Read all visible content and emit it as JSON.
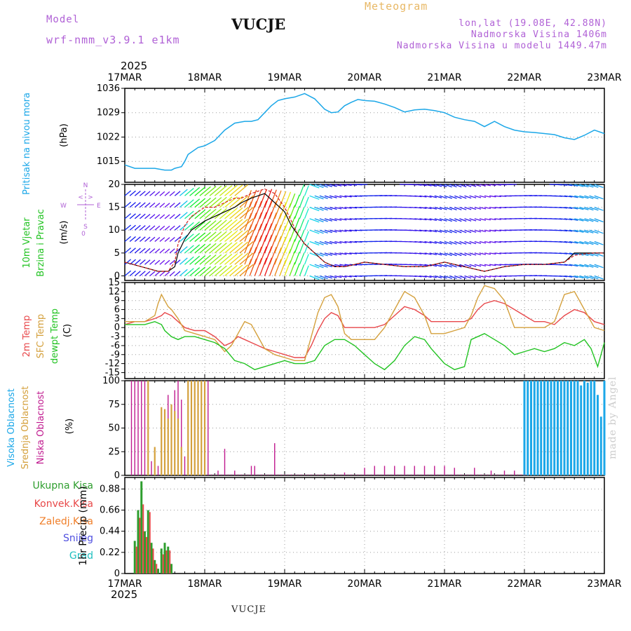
{
  "header": {
    "model_label": "Model",
    "model_name": "wrf-nmm_v3.9.1  e1km",
    "station": "VUCJE",
    "meteogram": "Meteogram",
    "lonlat": "lon,lat (19.08E, 42.88N)",
    "elevation": "Nadmorska Visina 1406m",
    "model_elevation": "Nadmorska Visina u modelu 1449.47m"
  },
  "footer": {
    "station": "VUCJE",
    "credit": "made by Angel"
  },
  "axis": {
    "year": "2025",
    "dates": [
      "17MAR",
      "18MAR",
      "19MAR",
      "20MAR",
      "21MAR",
      "22MAR",
      "23MAR"
    ]
  },
  "colors": {
    "pressure": "#1ba7e8",
    "temp2m": "#e8484b",
    "sfc": "#d4a03c",
    "dewpt": "#22c322",
    "high_cloud": "#1ba7e8",
    "mid_cloud": "#d4a03c",
    "low_cloud": "#c0198f",
    "total_precip": "#2e9e2e",
    "conv_precip": "#e84848",
    "frozen_precip": "#f07f2a",
    "snow": "#5050e0",
    "graupel": "#20c0c0",
    "text_purple": "#b061d6"
  },
  "chart_data": [
    {
      "type": "line",
      "panel": "pressure",
      "labels": [
        "Pritisak na nivou mora",
        "(hPa)"
      ],
      "ylim": [
        1009,
        1036
      ],
      "ticks": [
        "1015",
        "1022",
        "1029",
        "1036"
      ],
      "tick_values": [
        1015,
        1022,
        1029,
        1036
      ],
      "series": [
        {
          "x": [
            0,
            3,
            6,
            9,
            12,
            14,
            15,
            17,
            18,
            19,
            22,
            24,
            27,
            30,
            33,
            36,
            38,
            40,
            42,
            44,
            46,
            48,
            51,
            54,
            57,
            60,
            62,
            64,
            66,
            68,
            70,
            72,
            75,
            78,
            81,
            84,
            87,
            90,
            93,
            96,
            99,
            102,
            105,
            108,
            111,
            114,
            117,
            120,
            123,
            126,
            129,
            132,
            135,
            138,
            141,
            144
          ],
          "y": [
            1014,
            1013,
            1013,
            1013,
            1012.5,
            1012.5,
            1013,
            1013.5,
            1015,
            1017,
            1019,
            1019.5,
            1021,
            1024,
            1026,
            1026.5,
            1026.5,
            1027,
            1029,
            1031,
            1032.5,
            1033,
            1033.5,
            1034.5,
            1033,
            1030,
            1029,
            1029.2,
            1031,
            1032,
            1032.8,
            1032.5,
            1032.3,
            1031.5,
            1030.5,
            1029.2,
            1029.8,
            1030,
            1029.6,
            1029,
            1027.7,
            1027,
            1026.5,
            1025,
            1026.5,
            1025,
            1024,
            1023.5,
            1023.3,
            1023,
            1022.7,
            1021.8,
            1021.3,
            1022.5,
            1024,
            1023
          ]
        }
      ]
    },
    {
      "type": "line",
      "panel": "wind",
      "labels": [
        "10m Vjetar",
        "Brzina i Pravac",
        "(m/s)"
      ],
      "compass": [
        "N",
        "E",
        "S",
        "W",
        "0",
        "<",
        ">"
      ],
      "ylim": [
        -1,
        20
      ],
      "ticks": [
        "0",
        "5",
        "10",
        "15",
        "20"
      ],
      "tick_values": [
        0,
        5,
        10,
        15,
        20
      ],
      "series": [
        {
          "style": "solid-black",
          "x": [
            0,
            5,
            10,
            13,
            15,
            16,
            18,
            20,
            22,
            24,
            27,
            30,
            33,
            35,
            38,
            42,
            45,
            48,
            50,
            52,
            54,
            57,
            60,
            63,
            66,
            69,
            72,
            78,
            84,
            90,
            96,
            102,
            108,
            114,
            120,
            126,
            132,
            135,
            138,
            141,
            144
          ],
          "y": [
            3,
            2,
            1,
            1,
            2,
            5,
            8,
            10,
            11,
            12,
            13,
            14,
            15,
            16,
            17,
            18,
            16,
            14,
            11,
            9,
            7,
            5,
            3,
            2,
            2,
            2.5,
            3,
            2.5,
            2,
            2,
            3,
            2,
            1,
            2,
            2.5,
            2.5,
            3,
            5,
            5,
            5,
            5
          ]
        },
        {
          "style": "dashed-red",
          "x": [
            0,
            5,
            10,
            13,
            15,
            16,
            18,
            20,
            22,
            24,
            27,
            30,
            33,
            35,
            38,
            42,
            45,
            48,
            50,
            52,
            54,
            57,
            60,
            63,
            66,
            69,
            72,
            78,
            84,
            90,
            96,
            102,
            108,
            114,
            120,
            126,
            132,
            135,
            138,
            141,
            144
          ],
          "y": [
            3,
            2,
            1,
            1,
            3,
            7,
            11,
            13,
            14,
            15,
            15,
            16,
            17,
            17,
            18,
            19,
            18,
            15,
            12,
            9,
            7,
            5,
            3,
            2,
            2,
            2.5,
            3,
            2.5,
            2,
            2,
            3,
            2,
            1,
            2,
            2.5,
            2.5,
            3,
            4.5,
            4.8,
            5,
            5
          ]
        }
      ]
    },
    {
      "type": "line",
      "panel": "temperature",
      "labels": [
        "2m Temp",
        "SFC Temp",
        "dewpt Temp",
        "(C)"
      ],
      "ylim": [
        -17,
        15
      ],
      "ticks": [
        "15",
        "12",
        "9",
        "6",
        "3",
        "0",
        "-3",
        "-6",
        "-9",
        "-12",
        "-15"
      ],
      "tick_values": [
        15,
        12,
        9,
        6,
        3,
        0,
        -3,
        -6,
        -9,
        -12,
        -15
      ],
      "series": [
        {
          "name": "2m Temp",
          "x": [
            0,
            3,
            6,
            9,
            11,
            12,
            14,
            16,
            18,
            21,
            24,
            27,
            30,
            32,
            34,
            36,
            38,
            40,
            42,
            45,
            48,
            51,
            54,
            56,
            58,
            60,
            62,
            64,
            66,
            68,
            70,
            72,
            75,
            78,
            81,
            84,
            87,
            90,
            92,
            96,
            99,
            102,
            104,
            106,
            108,
            111,
            114,
            117,
            120,
            123,
            126,
            129,
            132,
            135,
            138,
            141,
            144
          ],
          "y": [
            1,
            2,
            2,
            3,
            4,
            5,
            4,
            2,
            0,
            -1,
            -1,
            -3,
            -6,
            -5,
            -3,
            -4,
            -5,
            -6,
            -7,
            -8,
            -9,
            -10,
            -10,
            -6,
            -1,
            3,
            5,
            4,
            0,
            0,
            0,
            0,
            0,
            1,
            4,
            7,
            6,
            4,
            2,
            2,
            2,
            2,
            3,
            6,
            8,
            9,
            8,
            6,
            4,
            2,
            2,
            1,
            4,
            6,
            5,
            2,
            1
          ]
        },
        {
          "name": "SFC Temp",
          "x": [
            0,
            3,
            6,
            9,
            10,
            11,
            12,
            13,
            14,
            16,
            18,
            21,
            24,
            27,
            30,
            32,
            34,
            36,
            38,
            40,
            42,
            45,
            48,
            51,
            54,
            56,
            58,
            60,
            62,
            64,
            66,
            68,
            70,
            72,
            75,
            78,
            81,
            84,
            87,
            90,
            92,
            96,
            99,
            102,
            104,
            106,
            108,
            111,
            114,
            117,
            120,
            123,
            126,
            129,
            132,
            135,
            138,
            141,
            144
          ],
          "y": [
            2,
            2,
            2,
            4,
            8,
            11,
            9,
            7,
            6,
            3,
            -1,
            -2,
            -3,
            -4,
            -8,
            -6,
            -2,
            2,
            1,
            -3,
            -7,
            -9,
            -10,
            -11,
            -11,
            -3,
            5,
            10,
            11,
            7,
            -2,
            -4,
            -4,
            -4,
            -4,
            0,
            6,
            12,
            10,
            4,
            -2,
            -2,
            -1,
            0,
            4,
            10,
            14,
            13,
            9,
            0,
            0,
            0,
            0,
            2,
            11,
            12,
            6,
            0,
            -1
          ]
        },
        {
          "name": "dewpt Temp",
          "x": [
            0,
            3,
            6,
            9,
            11,
            12,
            14,
            16,
            18,
            21,
            24,
            27,
            30,
            33,
            36,
            39,
            42,
            45,
            48,
            51,
            54,
            57,
            60,
            63,
            66,
            69,
            72,
            75,
            78,
            81,
            84,
            87,
            90,
            92,
            96,
            99,
            102,
            104,
            108,
            111,
            114,
            117,
            120,
            123,
            126,
            129,
            132,
            135,
            138,
            140,
            142,
            144
          ],
          "y": [
            1,
            1,
            1,
            2,
            1,
            -1,
            -3,
            -4,
            -3,
            -3,
            -4,
            -5,
            -7,
            -11,
            -12,
            -14,
            -13,
            -12,
            -11,
            -12,
            -12,
            -11,
            -6,
            -4,
            -4,
            -6,
            -9,
            -12,
            -14,
            -11,
            -6,
            -3,
            -4,
            -7,
            -12,
            -14,
            -13,
            -4,
            -2,
            -4,
            -6,
            -9,
            -8,
            -7,
            -8,
            -7,
            -5,
            -6,
            -4,
            -7,
            -13,
            -5
          ]
        }
      ]
    },
    {
      "type": "bar",
      "panel": "clouds",
      "labels": [
        "Visoka Oblacnost",
        "Srednja Oblacnost",
        "Niska Oblacnost",
        "(%)"
      ],
      "ylim": [
        0,
        100
      ],
      "ticks": [
        "0",
        "25",
        "50",
        "75",
        "100"
      ],
      "tick_values": [
        0,
        25,
        50,
        75,
        100
      ],
      "series": [
        {
          "name": "Niska Oblacnost",
          "x": [
            2,
            3,
            4,
            5,
            6,
            7,
            8,
            9,
            10,
            11,
            12,
            13,
            14,
            15,
            16,
            17,
            18,
            19,
            20,
            21,
            22,
            23,
            24,
            25,
            28,
            30,
            33,
            38,
            39,
            45,
            66,
            72,
            75,
            78,
            81,
            84,
            87,
            90,
            93,
            96,
            99,
            105,
            110,
            114,
            117
          ],
          "y": [
            100,
            100,
            100,
            100,
            100,
            100,
            15,
            20,
            10,
            35,
            8,
            85,
            5,
            90,
            100,
            80,
            20,
            100,
            100,
            100,
            100,
            100,
            100,
            100,
            5,
            28,
            5,
            10,
            10,
            34,
            3,
            8,
            10,
            10,
            10,
            10,
            10,
            10,
            10,
            10,
            8,
            8,
            5,
            5,
            5
          ]
        },
        {
          "name": "Srednja Oblacnost",
          "x": [
            7,
            9,
            11,
            12,
            13,
            14,
            15,
            16,
            17,
            19,
            20,
            21,
            22,
            23,
            24,
            120,
            121,
            122,
            123,
            124,
            125,
            126,
            127,
            128,
            129,
            130,
            131,
            132,
            133,
            134,
            135
          ],
          "y": [
            100,
            30,
            72,
            70,
            60,
            75,
            68,
            60,
            30,
            100,
            100,
            100,
            100,
            100,
            100,
            100,
            100,
            100,
            100,
            100,
            100,
            100,
            100,
            100,
            100,
            100,
            100,
            100,
            100,
            100,
            100
          ]
        },
        {
          "name": "Visoka Oblacnost",
          "x": [
            120,
            121,
            122,
            123,
            124,
            125,
            126,
            127,
            128,
            129,
            130,
            131,
            132,
            133,
            134,
            135,
            136,
            137,
            138,
            139,
            140,
            141,
            142,
            143,
            144
          ],
          "y": [
            100,
            100,
            100,
            100,
            100,
            100,
            100,
            100,
            100,
            100,
            100,
            100,
            100,
            100,
            100,
            100,
            100,
            95,
            100,
            98,
            100,
            100,
            85,
            62,
            100
          ]
        }
      ]
    },
    {
      "type": "bar",
      "panel": "precipitation",
      "labels": [
        "Ukupna Kisa",
        "Konvek.Kisa",
        "Zaledj.Kisa",
        "Snijeg",
        "Grad",
        "1hr Precip (mm)"
      ],
      "ylim": [
        0,
        1
      ],
      "ticks": [
        "0",
        "0.22",
        "0.44",
        "0.66",
        "0.88"
      ],
      "tick_values": [
        0,
        0.22,
        0.44,
        0.66,
        0.88
      ],
      "series": [
        {
          "name": "Ukupna Kisa",
          "x": [
            3,
            4,
            5,
            6,
            7,
            8,
            9,
            10,
            11,
            12,
            13,
            14,
            15,
            16,
            17
          ],
          "y": [
            0.34,
            0.66,
            0.96,
            0.44,
            0.66,
            0.32,
            0.14,
            0.05,
            0.26,
            0.32,
            0.28,
            0.1,
            0.0,
            0.0,
            0.0
          ]
        },
        {
          "name": "Konvek.Kisa",
          "x": [
            3,
            4,
            5,
            6,
            7,
            8,
            9,
            11,
            12,
            13
          ],
          "y": [
            0.28,
            0.58,
            0.72,
            0.38,
            0.64,
            0.26,
            0.1,
            0.2,
            0.24,
            0.24
          ]
        },
        {
          "name": "Snijeg",
          "x": [
            5,
            7,
            8,
            9
          ],
          "y": [
            0.0,
            0.0,
            0.0,
            0.0
          ]
        }
      ]
    }
  ]
}
